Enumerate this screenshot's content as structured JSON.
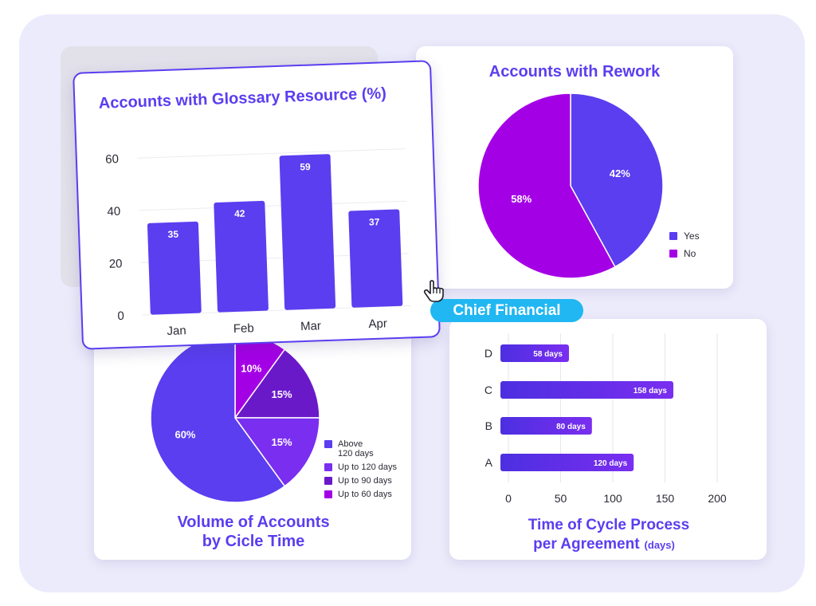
{
  "colors": {
    "primary": "#5a3ef0",
    "purple": "#a400e6",
    "dark_purple": "#6a19c9",
    "violet": "#7a2ef0",
    "indigo": "#4c2fe0",
    "badge": "#20b7f2"
  },
  "badge_label": "Chief Financial",
  "cursor_icon": "hand-pointer-icon",
  "charts": {
    "glossary": {
      "type": "bar",
      "title": "Accounts with Glossary Resource (%)",
      "categories": [
        "Jan",
        "Feb",
        "Mar",
        "Apr"
      ],
      "values": [
        35,
        42,
        59,
        37
      ],
      "yticks": [
        0,
        20,
        40,
        60
      ],
      "ylim": [
        0,
        64
      ]
    },
    "rework": {
      "type": "pie",
      "title": "Accounts with Rework",
      "slices": [
        {
          "label": "Yes",
          "value": 42,
          "text": "42%",
          "color": "#5a3ef0"
        },
        {
          "label": "No",
          "value": 58,
          "text": "58%",
          "color": "#a400e6"
        }
      ]
    },
    "volume": {
      "type": "pie",
      "title_line1": "Volume of Accounts",
      "title_line2": "by Cicle Time",
      "slices": [
        {
          "label": "Up to 60 days",
          "value": 10,
          "text": "10%",
          "color": "#a400e6"
        },
        {
          "label": "Up to 90 days",
          "value": 15,
          "text": "15%",
          "color": "#6a19c9"
        },
        {
          "label": "Up to 120 days",
          "value": 15,
          "text": "15%",
          "color": "#7a2ef0"
        },
        {
          "label": "Above 120 days",
          "value": 60,
          "text": "60%",
          "color": "#5a3ef0"
        }
      ],
      "legend": [
        {
          "label": "Above",
          "label2": "120 days",
          "color": "#5a3ef0"
        },
        {
          "label": "Up to 120 days",
          "color": "#7a2ef0"
        },
        {
          "label": "Up to 90 days",
          "color": "#6a19c9"
        },
        {
          "label": "Up to 60 days",
          "color": "#a400e6"
        }
      ]
    },
    "cycle": {
      "type": "bar",
      "orientation": "horizontal",
      "title_line1": "Time of Cycle Process",
      "title_line2": "per Agreement",
      "title_unit": "(days)",
      "categories": [
        "D",
        "C",
        "B",
        "A"
      ],
      "values": [
        58,
        158,
        80,
        120
      ],
      "labels": [
        "58 days",
        "158 days",
        "80 days",
        "120 days"
      ],
      "xticks": [
        0,
        50,
        100,
        150,
        200
      ],
      "xlim": [
        0,
        200
      ]
    }
  }
}
